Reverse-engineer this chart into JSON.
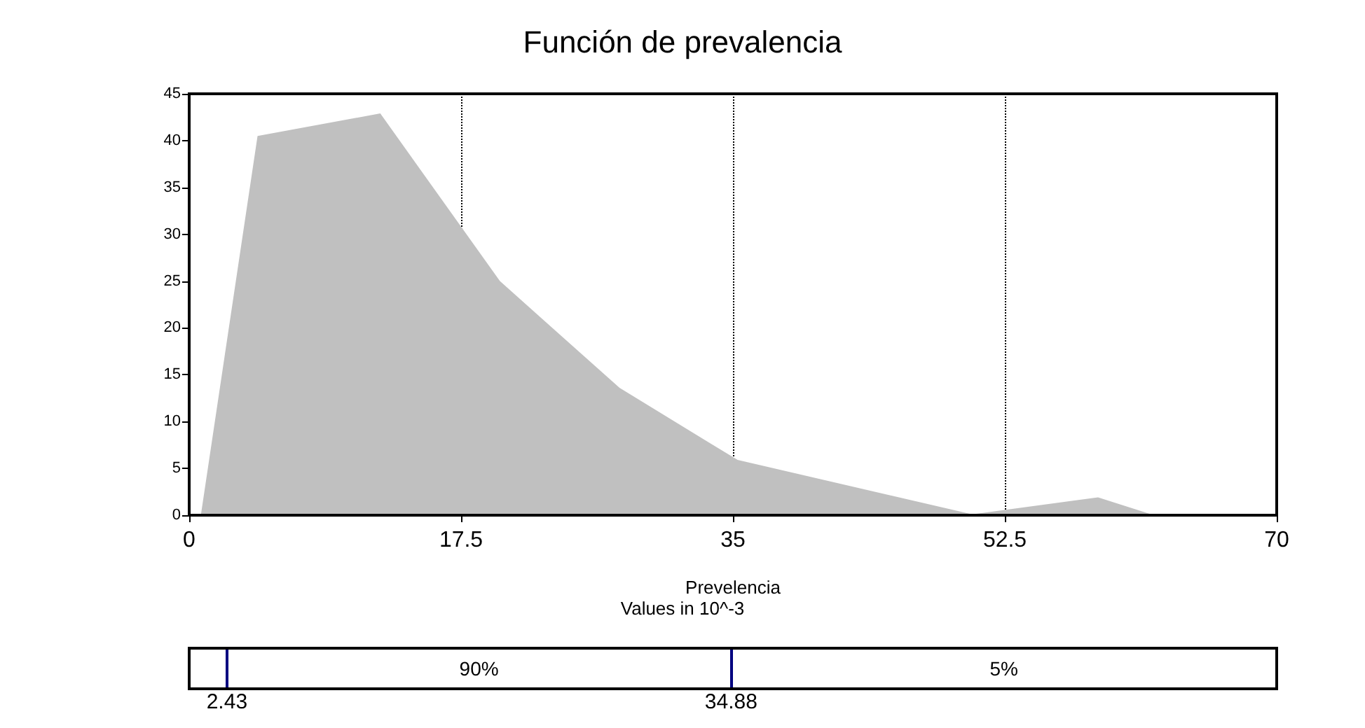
{
  "chart_data": {
    "type": "area",
    "title": "Función de prevalencia",
    "xlabel": "Prevelencia",
    "annotations": [
      "Values in 10^-3",
      "90%",
      "5%"
    ],
    "x": [
      0.75,
      4.4,
      12.3,
      20.0,
      27.7,
      35.3,
      50.4,
      58.5,
      62.1
    ],
    "series": [
      {
        "color": "#c0c0c0",
        "values": [
          0,
          40.5,
          42.9,
          25.0,
          13.6,
          5.9,
          0.1,
          1.9,
          0
        ]
      }
    ],
    "xlim": [
      0,
      70
    ],
    "xticks": [
      0,
      17.5,
      35,
      52.5,
      70
    ],
    "ylim": [
      0,
      45
    ],
    "yticks": [
      0,
      5,
      10,
      15,
      20,
      25,
      30,
      35,
      40,
      45
    ],
    "grid": "x",
    "marker": "none",
    "ref_lines": [
      {
        "axis": "x",
        "value": 2.43,
        "label": "2.43",
        "color": "#000080"
      },
      {
        "axis": "x",
        "value": 34.88,
        "label": "34.88",
        "color": "#000080"
      }
    ]
  }
}
